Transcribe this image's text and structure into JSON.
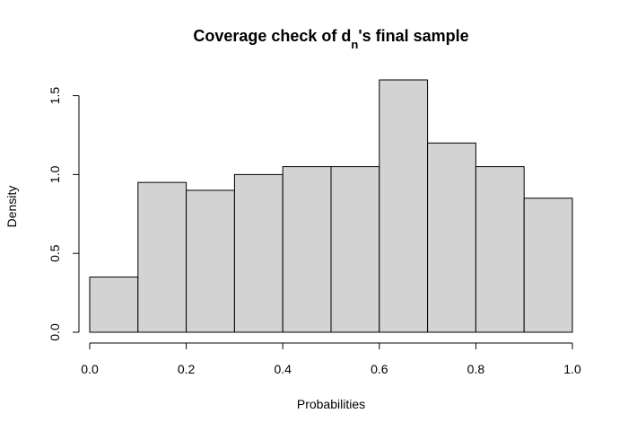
{
  "chart_data": {
    "type": "bar",
    "title": {
      "prefix": "Coverage check of d",
      "subscript": "n",
      "suffix": "'s final sample"
    },
    "xlabel": "Probabilities",
    "ylabel": "Density",
    "bins": [
      {
        "start": 0.0,
        "end": 0.1,
        "value": 0.35
      },
      {
        "start": 0.1,
        "end": 0.2,
        "value": 0.95
      },
      {
        "start": 0.2,
        "end": 0.3,
        "value": 0.9
      },
      {
        "start": 0.3,
        "end": 0.4,
        "value": 1.0
      },
      {
        "start": 0.4,
        "end": 0.5,
        "value": 1.05
      },
      {
        "start": 0.5,
        "end": 0.6,
        "value": 1.05
      },
      {
        "start": 0.6,
        "end": 0.7,
        "value": 1.6
      },
      {
        "start": 0.7,
        "end": 0.8,
        "value": 1.2
      },
      {
        "start": 0.8,
        "end": 0.9,
        "value": 1.05
      },
      {
        "start": 0.9,
        "end": 1.0,
        "value": 0.85
      }
    ],
    "xlim": [
      0,
      1
    ],
    "ylim": [
      0,
      1.6
    ],
    "x_ticks": [
      {
        "value": 0.0,
        "label": "0.0"
      },
      {
        "value": 0.2,
        "label": "0.2"
      },
      {
        "value": 0.4,
        "label": "0.4"
      },
      {
        "value": 0.6,
        "label": "0.6"
      },
      {
        "value": 0.8,
        "label": "0.8"
      },
      {
        "value": 1.0,
        "label": "1.0"
      }
    ],
    "y_ticks": [
      {
        "value": 0.0,
        "label": "0.0"
      },
      {
        "value": 0.5,
        "label": "0.5"
      },
      {
        "value": 1.0,
        "label": "1.0"
      },
      {
        "value": 1.5,
        "label": "1.5"
      }
    ],
    "grid": false,
    "legend": "none",
    "bar_fill": "#d3d3d3",
    "bar_stroke": "#000000"
  }
}
